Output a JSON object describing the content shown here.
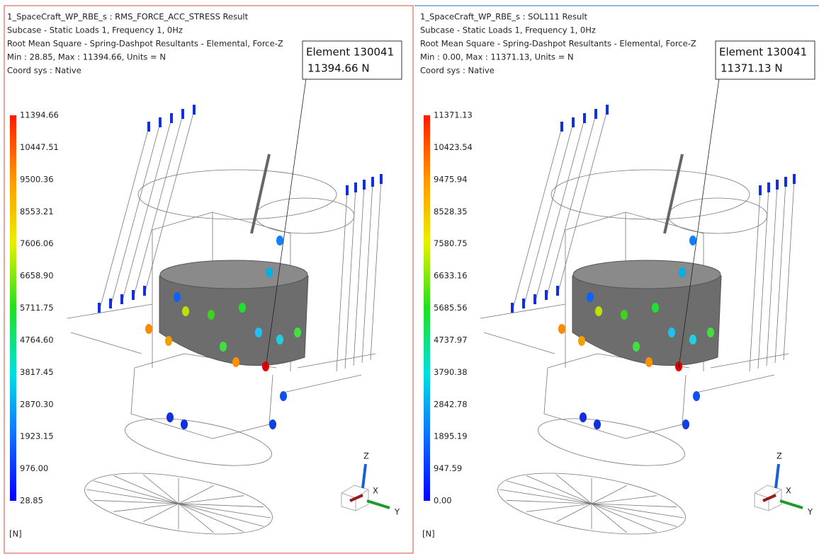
{
  "panels": [
    {
      "lines": [
        "1_SpaceCraft_WP_RBE_s : RMS_FORCE_ACC_STRESS Result",
        "Subcase - Static Loads 1, Frequency 1, 0Hz",
        "Root Mean Square - Spring-Dashpot Resultants - Elemental, Force-Z",
        "Min : 28.85, Max : 11394.66, Units = N",
        "Coord sys : Native"
      ],
      "callout": {
        "element": "Element 130041",
        "value": "11394.66 N"
      },
      "legend": [
        "11394.66",
        "10447.51",
        "9500.36",
        "8553.21",
        "7606.06",
        "6658.90",
        "5711.75",
        "4764.60",
        "3817.45",
        "2870.30",
        "1923.15",
        "976.00",
        "28.85"
      ],
      "units": "[N]",
      "triad": {
        "z": "Z",
        "x": "X",
        "y": "Y"
      }
    },
    {
      "lines": [
        "1_SpaceCraft_WP_RBE_s : SOL111 Result",
        "Subcase - Static Loads 1, Frequency 1, 0Hz",
        "Root Mean Square - Spring-Dashpot Resultants - Elemental, Force-Z",
        "Min : 0.00, Max : 11371.13, Units = N",
        "Coord sys : Native"
      ],
      "callout": {
        "element": "Element 130041",
        "value": "11371.13 N"
      },
      "legend": [
        "11371.13",
        "10423.54",
        "9475.94",
        "8528.35",
        "7580.75",
        "6633.16",
        "5685.56",
        "4737.97",
        "3790.38",
        "2842.78",
        "1895.19",
        "947.59",
        "0.00"
      ],
      "units": "[N]",
      "triad": {
        "z": "Z",
        "x": "X",
        "y": "Y"
      }
    }
  ]
}
